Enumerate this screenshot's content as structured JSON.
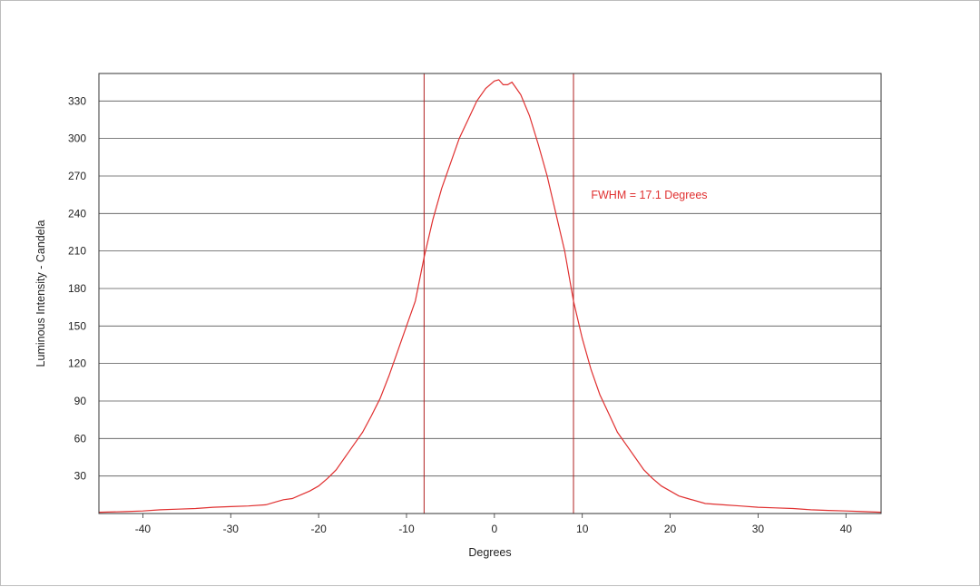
{
  "chart_data": {
    "type": "line",
    "xlabel": "Degrees",
    "ylabel": "Luminous Intensity - Candela",
    "xlim": [
      -45,
      44
    ],
    "ylim": [
      0,
      352
    ],
    "x_ticks": [
      -40,
      -30,
      -20,
      -10,
      0,
      10,
      20,
      30,
      40
    ],
    "y_ticks": [
      30,
      60,
      90,
      120,
      150,
      180,
      210,
      240,
      270,
      300,
      330
    ],
    "grid": "horizontal",
    "colors": {
      "curve": "#e03030",
      "marker": "#b02020",
      "grid": "#555555",
      "axis": "#333333"
    },
    "annotation": {
      "text": "FWHM = 17.1 Degrees",
      "x": 11,
      "y": 252
    },
    "vertical_markers": [
      -8,
      9
    ],
    "series": [
      {
        "x": [
          -45,
          -42,
          -40,
          -38,
          -36,
          -34,
          -32,
          -30,
          -28,
          -26,
          -25,
          -24,
          -23,
          -22,
          -21,
          -20,
          -19,
          -18,
          -17,
          -16,
          -15,
          -14,
          -13,
          -12,
          -11,
          -10,
          -9,
          -8,
          -7,
          -6,
          -5,
          -4,
          -3,
          -2,
          -1,
          0,
          0.5,
          1,
          1.5,
          2,
          2.5,
          3,
          4,
          5,
          6,
          7,
          8,
          9,
          10,
          11,
          12,
          13,
          14,
          15,
          16,
          17,
          18,
          19,
          20,
          21,
          22,
          24,
          26,
          28,
          30,
          32,
          34,
          36,
          38,
          40,
          42,
          44
        ],
        "y": [
          1,
          1.5,
          2,
          3,
          3.5,
          4,
          5,
          5.5,
          6,
          7,
          9,
          11,
          12,
          15,
          18,
          22,
          28,
          35,
          45,
          55,
          65,
          78,
          92,
          110,
          130,
          150,
          170,
          205,
          235,
          260,
          280,
          300,
          315,
          330,
          340,
          346,
          347,
          343,
          343,
          345,
          340,
          335,
          318,
          295,
          270,
          240,
          210,
          170,
          140,
          115,
          95,
          80,
          65,
          55,
          45,
          35,
          28,
          22,
          18,
          14,
          12,
          8,
          7,
          6,
          5,
          4.5,
          4,
          3,
          2.5,
          2,
          1.5,
          1
        ]
      }
    ]
  }
}
